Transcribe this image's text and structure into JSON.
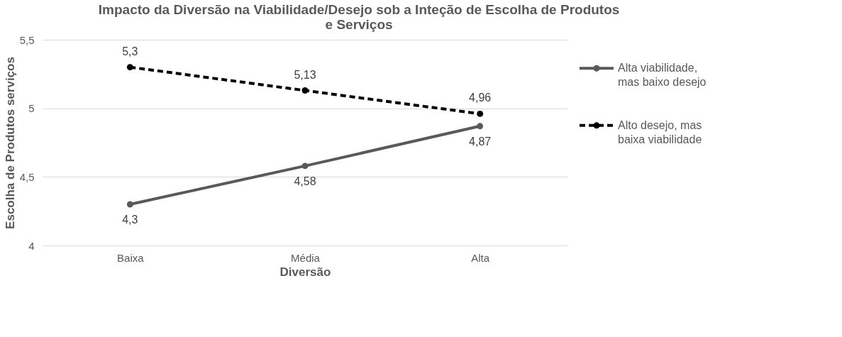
{
  "chart_data": {
    "type": "line",
    "title": "Impacto da Diversão na Viabilidade/Desejo sob a Inteção de Escolha de Produtos e Serviços",
    "xlabel": "Diversão",
    "ylabel": "Escolha de Produtos serviços",
    "categories": [
      "Baixa",
      "Média",
      "Alta"
    ],
    "series": [
      {
        "name": "Alta viabilidade, mas baixo desejo",
        "color": "#595959",
        "line_style": "solid",
        "values": [
          4.3,
          4.58,
          4.87
        ],
        "value_labels": [
          "4,3",
          "4,58",
          "4,87"
        ]
      },
      {
        "name": "Alto desejo, mas baixa viabilidade",
        "color": "#000000",
        "line_style": "dashed",
        "values": [
          5.3,
          5.13,
          4.96
        ],
        "value_labels": [
          "5,3",
          "5,13",
          "4,96"
        ]
      }
    ],
    "ylim": [
      4,
      5.5
    ],
    "yticks": [
      4,
      {
        "value": 4.5,
        "label": "4,5"
      },
      5,
      {
        "value": 5.5,
        "label": "5,5"
      }
    ],
    "grid": "y",
    "legend": "right",
    "marker": "circle"
  }
}
